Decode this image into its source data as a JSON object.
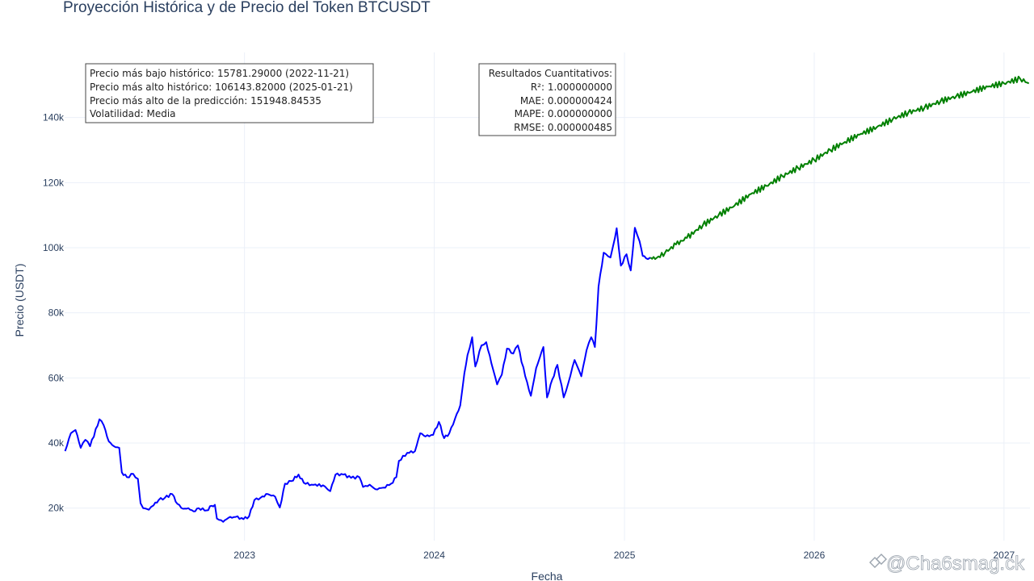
{
  "chart_data": {
    "type": "line",
    "title": "Proyección Histórica y de Precio del Token BTCUSDT",
    "xlabel": "Fecha",
    "ylabel": "Precio (USDT)",
    "grid": true,
    "xlim": [
      "2022-01-20",
      "2027-02-20"
    ],
    "ylim": [
      10000,
      160000
    ],
    "x_ticks": [
      {
        "date": "2023-01-01",
        "label": "2023"
      },
      {
        "date": "2024-01-01",
        "label": "2024"
      },
      {
        "date": "2025-01-01",
        "label": "2025"
      },
      {
        "date": "2026-01-01",
        "label": "2026"
      },
      {
        "date": "2027-01-01",
        "label": "2027"
      }
    ],
    "y_ticks": [
      {
        "value": 20000,
        "label": "20k"
      },
      {
        "value": 40000,
        "label": "40k"
      },
      {
        "value": 60000,
        "label": "60k"
      },
      {
        "value": 80000,
        "label": "80k"
      },
      {
        "value": 100000,
        "label": "100k"
      },
      {
        "value": 120000,
        "label": "120k"
      },
      {
        "value": 140000,
        "label": "140k"
      }
    ],
    "series": [
      {
        "color": "#0000ff",
        "points": [
          [
            "2022-01-21",
            37500
          ],
          [
            "2022-02-01",
            43000
          ],
          [
            "2022-02-10",
            44000
          ],
          [
            "2022-02-20",
            38500
          ],
          [
            "2022-03-01",
            41000
          ],
          [
            "2022-03-10",
            39000
          ],
          [
            "2022-03-28",
            47300
          ],
          [
            "2022-04-05",
            45500
          ],
          [
            "2022-04-15",
            40500
          ],
          [
            "2022-04-25",
            39000
          ],
          [
            "2022-05-05",
            38500
          ],
          [
            "2022-05-10",
            31000
          ],
          [
            "2022-05-20",
            29500
          ],
          [
            "2022-06-01",
            30500
          ],
          [
            "2022-06-10",
            29000
          ],
          [
            "2022-06-15",
            21500
          ],
          [
            "2022-06-20",
            20000
          ],
          [
            "2022-07-01",
            19500
          ],
          [
            "2022-07-10",
            20800
          ],
          [
            "2022-07-20",
            22500
          ],
          [
            "2022-08-01",
            23200
          ],
          [
            "2022-08-15",
            24300
          ],
          [
            "2022-08-25",
            21300
          ],
          [
            "2022-09-05",
            19800
          ],
          [
            "2022-09-15",
            20000
          ],
          [
            "2022-09-25",
            19000
          ],
          [
            "2022-10-05",
            20000
          ],
          [
            "2022-10-20",
            19300
          ],
          [
            "2022-10-30",
            20700
          ],
          [
            "2022-11-05",
            21000
          ],
          [
            "2022-11-09",
            16800
          ],
          [
            "2022-11-21",
            15781
          ],
          [
            "2022-12-01",
            17000
          ],
          [
            "2022-12-15",
            17300
          ],
          [
            "2022-12-30",
            16600
          ],
          [
            "2023-01-10",
            17500
          ],
          [
            "2023-01-20",
            22500
          ],
          [
            "2023-02-01",
            23200
          ],
          [
            "2023-02-15",
            24300
          ],
          [
            "2023-03-01",
            23500
          ],
          [
            "2023-03-10",
            20200
          ],
          [
            "2023-03-20",
            27500
          ],
          [
            "2023-04-01",
            28300
          ],
          [
            "2023-04-15",
            30300
          ],
          [
            "2023-04-25",
            27800
          ],
          [
            "2023-05-10",
            27200
          ],
          [
            "2023-06-01",
            27000
          ],
          [
            "2023-06-15",
            25200
          ],
          [
            "2023-06-25",
            30300
          ],
          [
            "2023-07-10",
            30300
          ],
          [
            "2023-07-25",
            29300
          ],
          [
            "2023-08-10",
            29500
          ],
          [
            "2023-08-17",
            26500
          ],
          [
            "2023-08-30",
            27200
          ],
          [
            "2023-09-10",
            25800
          ],
          [
            "2023-09-25",
            26300
          ],
          [
            "2023-10-10",
            27500
          ],
          [
            "2023-10-20",
            29500
          ],
          [
            "2023-10-25",
            34500
          ],
          [
            "2023-11-10",
            37000
          ],
          [
            "2023-11-25",
            37500
          ],
          [
            "2023-12-05",
            43000
          ],
          [
            "2023-12-15",
            42000
          ],
          [
            "2023-12-30",
            42500
          ],
          [
            "2024-01-10",
            46500
          ],
          [
            "2024-01-20",
            41500
          ],
          [
            "2024-01-30",
            43000
          ],
          [
            "2024-02-10",
            47500
          ],
          [
            "2024-02-20",
            51500
          ],
          [
            "2024-02-28",
            61500
          ],
          [
            "2024-03-05",
            67000
          ],
          [
            "2024-03-14",
            72500
          ],
          [
            "2024-03-20",
            63500
          ],
          [
            "2024-04-01",
            70000
          ],
          [
            "2024-04-10",
            71000
          ],
          [
            "2024-04-20",
            64500
          ],
          [
            "2024-05-01",
            58000
          ],
          [
            "2024-05-10",
            61000
          ],
          [
            "2024-05-20",
            69000
          ],
          [
            "2024-06-01",
            67500
          ],
          [
            "2024-06-10",
            70000
          ],
          [
            "2024-06-24",
            60500
          ],
          [
            "2024-07-05",
            54500
          ],
          [
            "2024-07-15",
            63000
          ],
          [
            "2024-07-29",
            69500
          ],
          [
            "2024-08-05",
            54000
          ],
          [
            "2024-08-15",
            59500
          ],
          [
            "2024-08-25",
            64000
          ],
          [
            "2024-09-06",
            54000
          ],
          [
            "2024-09-15",
            58500
          ],
          [
            "2024-09-27",
            65500
          ],
          [
            "2024-10-10",
            60500
          ],
          [
            "2024-10-20",
            68500
          ],
          [
            "2024-10-29",
            72500
          ],
          [
            "2024-11-05",
            69500
          ],
          [
            "2024-11-08",
            76500
          ],
          [
            "2024-11-12",
            88000
          ],
          [
            "2024-11-22",
            98500
          ],
          [
            "2024-12-05",
            97000
          ],
          [
            "2024-12-10",
            100500
          ],
          [
            "2024-12-17",
            106000
          ],
          [
            "2024-12-25",
            94500
          ],
          [
            "2025-01-05",
            98000
          ],
          [
            "2025-01-13",
            93000
          ],
          [
            "2025-01-21",
            106143
          ],
          [
            "2025-01-30",
            102000
          ],
          [
            "2025-02-05",
            97500
          ],
          [
            "2025-02-15",
            96500
          ],
          [
            "2025-02-20",
            97000
          ]
        ]
      },
      {
        "color": "#008000",
        "points": [
          [
            "2025-02-20",
            97000
          ],
          [
            "2025-03-01",
            96500
          ],
          [
            "2025-03-20",
            98500
          ],
          [
            "2025-04-10",
            101000
          ],
          [
            "2025-05-01",
            103000
          ],
          [
            "2025-06-01",
            107000
          ],
          [
            "2025-07-01",
            110000
          ],
          [
            "2025-08-01",
            113000
          ],
          [
            "2025-09-01",
            116500
          ],
          [
            "2025-10-01",
            119000
          ],
          [
            "2025-11-01",
            122000
          ],
          [
            "2025-12-01",
            124500
          ],
          [
            "2026-01-01",
            127000
          ],
          [
            "2026-02-01",
            130000
          ],
          [
            "2026-03-01",
            132500
          ],
          [
            "2026-04-01",
            135000
          ],
          [
            "2026-05-01",
            137000
          ],
          [
            "2026-06-01",
            139500
          ],
          [
            "2026-07-01",
            141500
          ],
          [
            "2026-08-01",
            143000
          ],
          [
            "2026-09-01",
            145000
          ],
          [
            "2026-10-01",
            146500
          ],
          [
            "2026-11-01",
            148000
          ],
          [
            "2026-12-01",
            149500
          ],
          [
            "2027-01-01",
            150500
          ],
          [
            "2027-02-01",
            151948
          ],
          [
            "2027-02-18",
            150500
          ]
        ]
      }
    ],
    "annotations": [
      {
        "position": "top-left",
        "lines": [
          "Precio más bajo histórico: 15781.29000 (2022-11-21)",
          "Precio más alto histórico: 106143.82000 (2025-01-21)",
          "Precio más alto de la predicción: 151948.84535",
          "Volatilidad: Media"
        ]
      },
      {
        "position": "top-center",
        "lines": [
          "Resultados Cuantitativos:",
          "R²: 1.000000000",
          "MAE: 0.000000424",
          "MAPE: 0.000000000",
          "RMSE: 0.000000485"
        ]
      }
    ]
  },
  "watermark": "@Cha6smag.ck"
}
